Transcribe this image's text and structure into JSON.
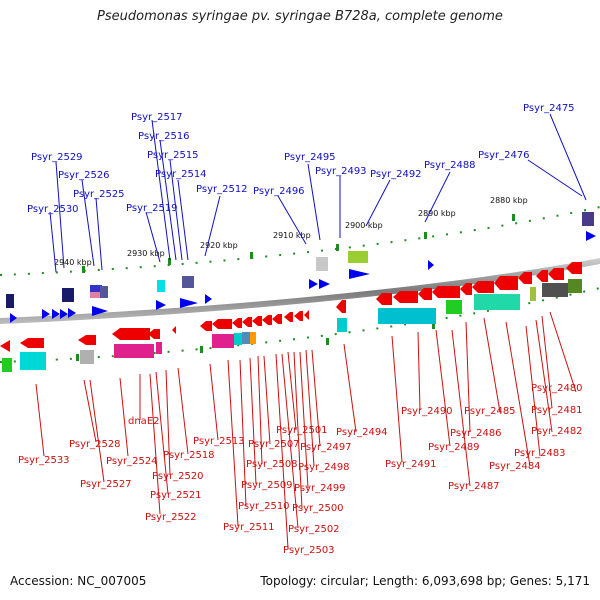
{
  "title": "Pseudomonas syringae pv. syringae B728a, complete genome",
  "footer": {
    "accession": "Accession: NC_007005",
    "topology": "Topology: circular; Length: 6,093,698 bp; Genes: 5,171"
  },
  "ticks": [
    "2880 kbp",
    "2890 kbp",
    "2900 kbp",
    "2910 kbp",
    "2920 kbp",
    "2930 kbp",
    "2940 kbp"
  ],
  "labels_forward": [
    "Psyr_2475",
    "Psyr_2476",
    "Psyr_2488",
    "Psyr_2492",
    "Psyr_2493",
    "Psyr_2495",
    "Psyr_2496",
    "Psyr_2512",
    "Psyr_2514",
    "Psyr_2515",
    "Psyr_2516",
    "Psyr_2517",
    "Psyr_2519",
    "Psyr_2525",
    "Psyr_2526",
    "Psyr_2529",
    "Psyr_2530"
  ],
  "labels_reverse": [
    "Psyr_2480",
    "Psyr_2481",
    "Psyr_2482",
    "Psyr_2483",
    "Psyr_2484",
    "Psyr_2485",
    "Psyr_2486",
    "Psyr_2487",
    "Psyr_2489",
    "Psyr_2490",
    "Psyr_2491",
    "Psyr_2494",
    "Psyr_2497",
    "Psyr_2498",
    "Psyr_2499",
    "Psyr_2500",
    "Psyr_2501",
    "Psyr_2502",
    "Psyr_2503",
    "Psyr_2507",
    "Psyr_2508",
    "Psyr_2509",
    "Psyr_2510",
    "Psyr_2511",
    "Psyr_2513",
    "Psyr_2518",
    "Psyr_2520",
    "Psyr_2521",
    "Psyr_2522",
    "dnaE2",
    "Psyr_2524",
    "Psyr_2527",
    "Psyr_2528",
    "Psyr_2533"
  ],
  "colors": {
    "forward_label": "#1010c0",
    "reverse_label": "#cc1010",
    "forward_gene": "#0000ee",
    "reverse_gene": "#ee0000",
    "tick_dot": "#1e8c1e",
    "backbone": "#8a8a8a"
  }
}
